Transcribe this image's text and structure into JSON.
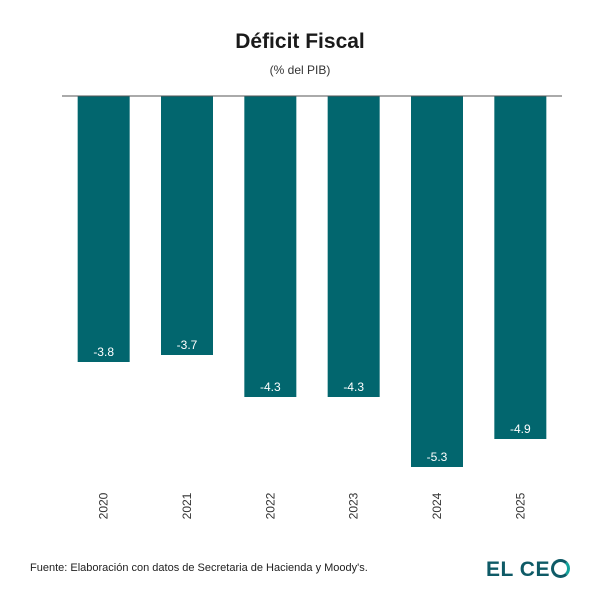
{
  "chart_data": {
    "type": "bar",
    "title": "Déficit Fiscal",
    "subtitle": "(% del PIB)",
    "categories": [
      "2020",
      "2021",
      "2022",
      "2023",
      "2024",
      "2025"
    ],
    "values": [
      -3.8,
      -3.7,
      -4.3,
      -4.3,
      -5.3,
      -4.9
    ],
    "value_labels": [
      "-3.8",
      "-3.7",
      "-4.3",
      "-4.3",
      "-5.3",
      "-4.9"
    ],
    "ylim": [
      -5.3,
      0
    ],
    "xlabel": "",
    "ylabel": "",
    "grid": false,
    "bar_color": "#02666e",
    "label_color": "#ffffff"
  },
  "footer": {
    "source": "Fuente: Elaboración con datos de Secretaria de Hacienda y Moody's.",
    "brand_part1": "EL CE",
    "brand_color": "#0e5a66",
    "brand_accent": "#12a19a"
  }
}
